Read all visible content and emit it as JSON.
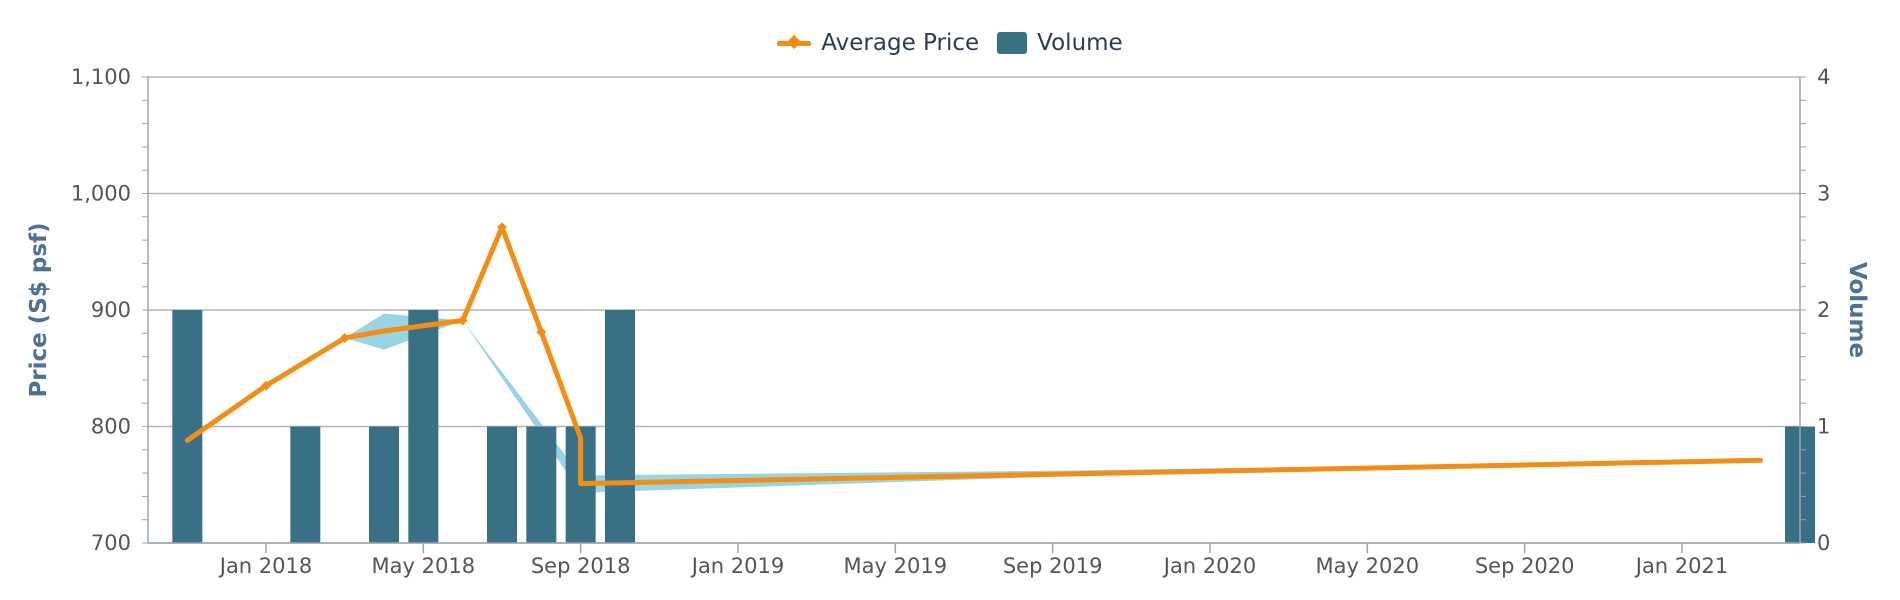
{
  "legend": {
    "price_label": "Average Price",
    "volume_label": "Volume"
  },
  "colors": {
    "price": "#f28e15",
    "volume": "#3a7086",
    "band": "#8ecfe0",
    "grid": "#b5b5b5",
    "axis_title": "#4f7196"
  },
  "chart_data": {
    "type": "bar",
    "combo": "bar+line",
    "left_axis": {
      "title": "Price (S$ psf)",
      "ylim": [
        700,
        1100
      ],
      "ticks": [
        "700",
        "800",
        "900",
        "1,000",
        "1,100"
      ],
      "tick_values": [
        700,
        800,
        900,
        1000,
        1100
      ]
    },
    "right_axis": {
      "title": "Volume",
      "ylim": [
        0,
        4
      ],
      "ticks": [
        "0",
        "1",
        "2",
        "3",
        "4"
      ],
      "tick_values": [
        0,
        1,
        2,
        3,
        4
      ]
    },
    "x_axis": {
      "start": "2017-10",
      "end": "2021-04",
      "tick_labels": [
        "Jan 2018",
        "May 2018",
        "Sep 2018",
        "Jan 2019",
        "May 2019",
        "Sep 2019",
        "Jan 2020",
        "May 2020",
        "Sep 2020",
        "Jan 2021"
      ],
      "tick_dates": [
        "2018-01",
        "2018-05",
        "2018-09",
        "2019-01",
        "2019-05",
        "2019-09",
        "2020-01",
        "2020-05",
        "2020-09",
        "2021-01"
      ]
    },
    "grid": true,
    "legend_position": "top-center",
    "series": [
      {
        "name": "Average Price",
        "kind": "line",
        "axis": "left",
        "points": [
          {
            "x": "2017-11",
            "y": 788
          },
          {
            "x": "2018-01",
            "y": 835
          },
          {
            "x": "2018-03",
            "y": 876
          },
          {
            "x": "2018-04",
            "y": 882
          },
          {
            "x": "2018-06",
            "y": 891
          },
          {
            "x": "2018-07",
            "y": 971
          },
          {
            "x": "2018-08",
            "y": 881
          },
          {
            "x": "2018-09",
            "y": 790
          },
          {
            "x": "2018-09",
            "y": 751
          },
          {
            "x": "2021-03",
            "y": 771
          }
        ],
        "markers": [
          {
            "x": "2018-01",
            "y": 835
          },
          {
            "x": "2018-03",
            "y": 876
          },
          {
            "x": "2018-06",
            "y": 891
          },
          {
            "x": "2018-07",
            "y": 971
          },
          {
            "x": "2018-08",
            "y": 881
          }
        ]
      },
      {
        "name": "Volume",
        "kind": "bar",
        "axis": "right",
        "points": [
          {
            "x": "2017-11",
            "y": 2
          },
          {
            "x": "2018-02",
            "y": 1
          },
          {
            "x": "2018-04",
            "y": 1
          },
          {
            "x": "2018-05",
            "y": 2
          },
          {
            "x": "2018-07",
            "y": 1
          },
          {
            "x": "2018-08",
            "y": 1
          },
          {
            "x": "2018-09",
            "y": 1
          },
          {
            "x": "2018-10",
            "y": 2
          },
          {
            "x": "2021-04",
            "y": 1
          }
        ]
      }
    ],
    "range_band": [
      {
        "x": "2018-03",
        "low": 876,
        "high": 876
      },
      {
        "x": "2018-04",
        "low": 866,
        "high": 897
      },
      {
        "x": "2018-06",
        "low": 891,
        "high": 891
      },
      {
        "x": "2018-09",
        "low": 743,
        "high": 758
      },
      {
        "x": "2019-09",
        "low": 757,
        "high": 762
      },
      {
        "x": "2021-03",
        "low": 771,
        "high": 771
      }
    ]
  }
}
